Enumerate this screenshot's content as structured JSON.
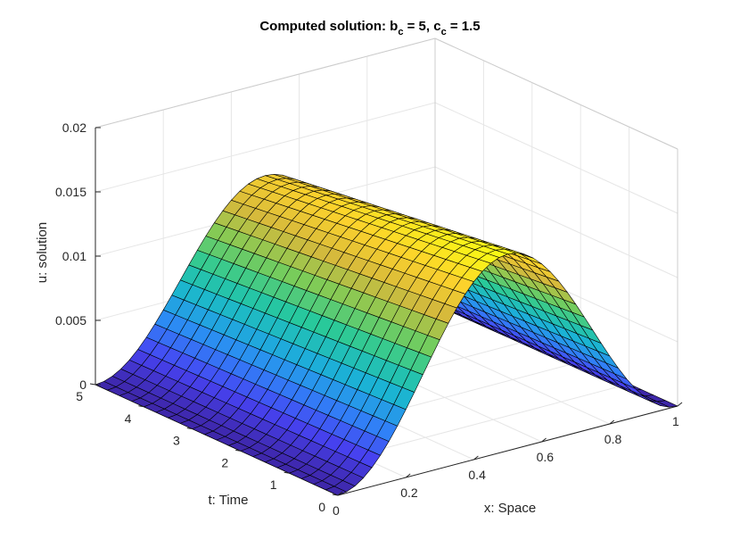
{
  "chart_data": {
    "type": "surface",
    "title_parts": [
      "Computed solution: b",
      "c",
      " = 5, c",
      "c",
      " = 1.5"
    ],
    "xlabel": "x: Space",
    "ylabel": "t: Time",
    "zlabel": "u: solution",
    "xlim": [
      0,
      1
    ],
    "tlim": [
      0,
      5
    ],
    "zlim": [
      0,
      0.02
    ],
    "x_ticks": [
      "0",
      "0.2",
      "0.4",
      "0.6",
      "0.8",
      "1"
    ],
    "t_ticks": [
      "0",
      "1",
      "2",
      "3",
      "4",
      "5"
    ],
    "z_ticks": [
      "0",
      "0.005",
      "0.01",
      "0.015",
      "0.02"
    ],
    "grid": true,
    "colormap": "parula",
    "colormap_stops": [
      "#3e26a8",
      "#4743f2",
      "#2e87f7",
      "#1bb3d4",
      "#28c99b",
      "#7bcc58",
      "#d5b93c",
      "#fcd22c",
      "#f9fb14"
    ],
    "edge_color": "#000000",
    "mesh": {
      "nx": 41,
      "nt": 21
    },
    "x": [
      0,
      0.025,
      0.05,
      0.075,
      0.1,
      0.125,
      0.15,
      0.175,
      0.2,
      0.225,
      0.25,
      0.275,
      0.3,
      0.325,
      0.35,
      0.375,
      0.4,
      0.425,
      0.45,
      0.475,
      0.5,
      0.525,
      0.55,
      0.575,
      0.6,
      0.625,
      0.65,
      0.675,
      0.7,
      0.725,
      0.75,
      0.775,
      0.8,
      0.825,
      0.85,
      0.875,
      0.9,
      0.925,
      0.95,
      0.975,
      1
    ],
    "t": [
      0,
      0.25,
      0.5,
      0.75,
      1,
      1.25,
      1.5,
      1.75,
      2,
      2.25,
      2.5,
      2.75,
      3,
      3.25,
      3.5,
      3.75,
      4,
      4.25,
      4.5,
      4.75,
      5
    ],
    "u_profile_points": {
      "t": [
        0,
        1,
        2,
        3,
        4,
        5
      ],
      "peak_u": [
        0.0153,
        0.0148,
        0.0143,
        0.0138,
        0.0133,
        0.0128
      ],
      "peak_x": 0.5
    }
  }
}
